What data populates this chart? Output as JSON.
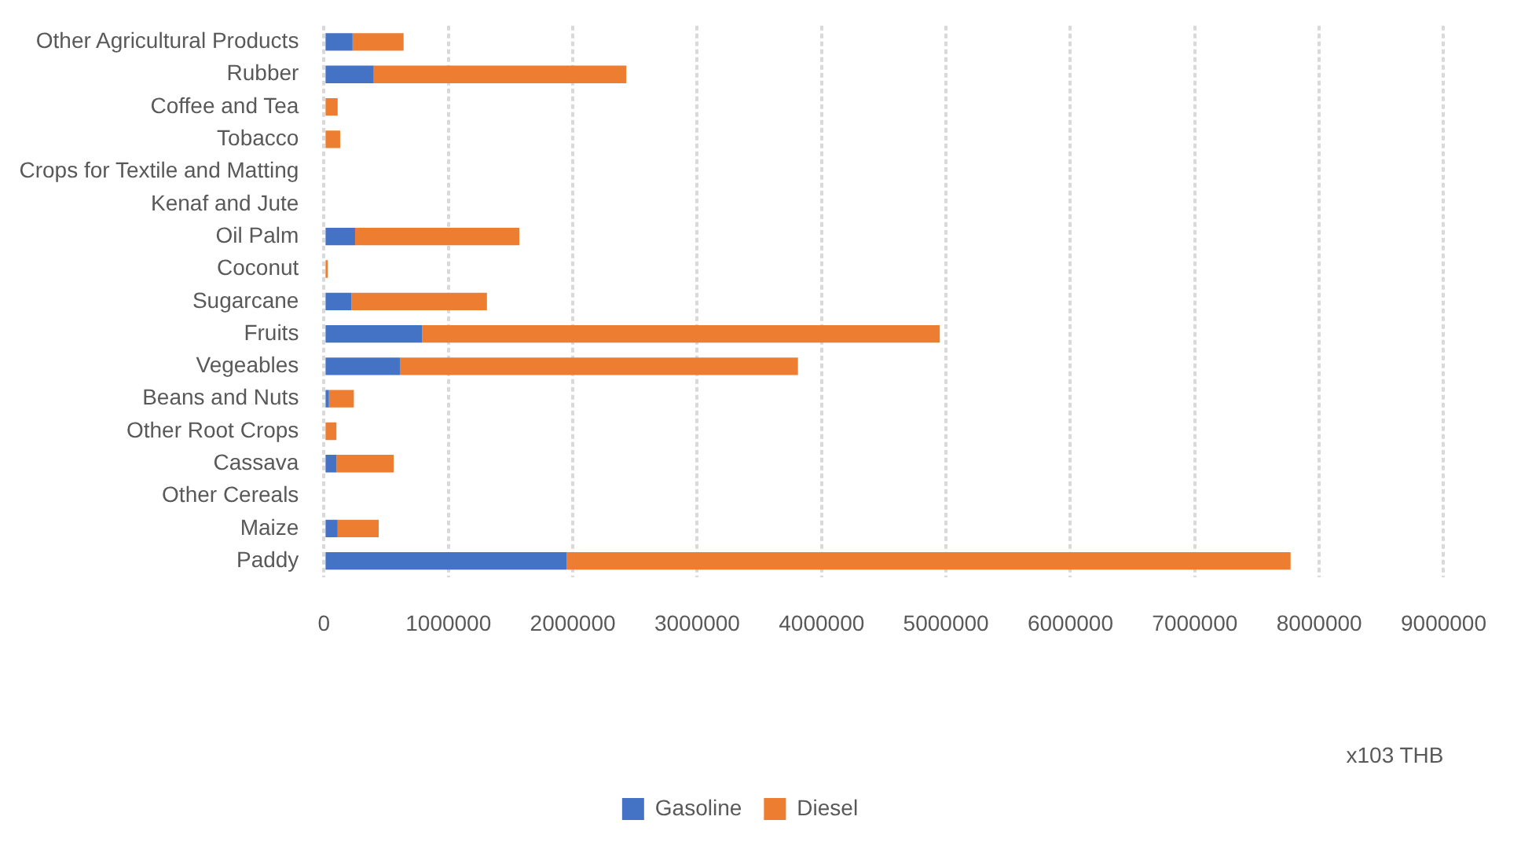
{
  "chart_data": {
    "type": "bar",
    "orientation": "horizontal",
    "stacked": true,
    "xlabel": "x103 THB",
    "categories": [
      "Other Agricultural Products",
      "Rubber",
      "Coffee and Tea",
      "Tobacco",
      "Crops for Textile and Matting",
      "Kenaf and Jute",
      "Oil Palm",
      "Coconut",
      "Sugarcane",
      "Fruits",
      "Vegeables",
      "Beans and Nuts",
      "Other Root Crops",
      "Cassava",
      "Other Cereals",
      "Maize",
      "Paddy"
    ],
    "series": [
      {
        "name": "Gasoline",
        "color": "#4472c4",
        "values": [
          230000,
          400000,
          0,
          0,
          0,
          0,
          250000,
          0,
          220000,
          790000,
          610000,
          40000,
          0,
          100000,
          0,
          110000,
          1950000
        ]
      },
      {
        "name": "Diesel",
        "color": "#ed7d31",
        "values": [
          410000,
          2030000,
          110000,
          130000,
          0,
          0,
          1320000,
          30000,
          1090000,
          4160000,
          3200000,
          200000,
          100000,
          460000,
          0,
          330000,
          5820000
        ]
      }
    ],
    "xlim": [
      0,
      9000000
    ],
    "xticks": [
      0,
      1000000,
      2000000,
      3000000,
      4000000,
      5000000,
      6000000,
      7000000,
      8000000,
      9000000
    ],
    "grid": "x",
    "legend": "bottom"
  }
}
